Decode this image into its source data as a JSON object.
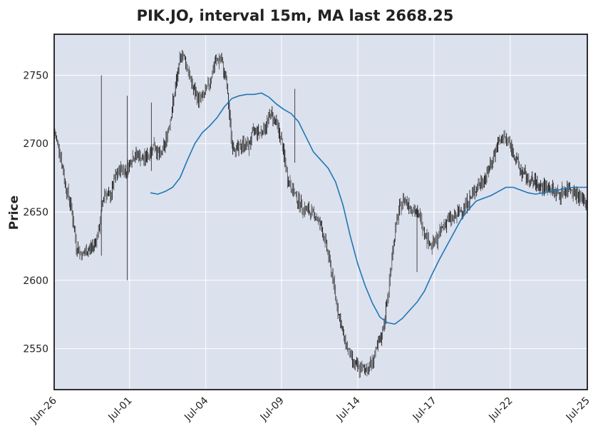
{
  "chart_data": {
    "type": "line",
    "title": "PIK.JO, interval 15m, MA last 2668.25",
    "xlabel": "",
    "ylabel": "Price",
    "ylim": [
      2520,
      2780
    ],
    "xlim": [
      "Jun-26",
      "Jul-25"
    ],
    "x_ticks": [
      "Jun-26",
      "Jul-01",
      "Jul-04",
      "Jul-09",
      "Jul-14",
      "Jul-17",
      "Jul-22",
      "Jul-25"
    ],
    "y_ticks": [
      2550,
      2600,
      2650,
      2700,
      2750
    ],
    "grid": true,
    "colors": {
      "price": "#222222",
      "ma": "#1f77b4",
      "plot_bg": "#dce1ee",
      "grid": "#ffffff"
    },
    "series": [
      {
        "style": "price-bars",
        "x": [
          0,
          0.3,
          0.6,
          0.9,
          1.2,
          1.5,
          1.8,
          2.1,
          2.4,
          2.7,
          3.0,
          3.3,
          3.6,
          3.9,
          4.2,
          4.5,
          4.8,
          5.1,
          5.4,
          5.7,
          6.0,
          6.3,
          6.6,
          6.9,
          7.2,
          7.5,
          7.8,
          8.1,
          8.4,
          8.7,
          9.0,
          9.3,
          9.6,
          9.9,
          10.2,
          10.5,
          10.8,
          11.1,
          11.4,
          11.7,
          12.0,
          12.3,
          12.6,
          12.9,
          13.2,
          13.5,
          13.8,
          14.1,
          14.4,
          14.7,
          15.0,
          15.3,
          15.6,
          15.9,
          16.2,
          16.5,
          16.8,
          17.1,
          17.4,
          17.7,
          18.0,
          18.3,
          18.6,
          18.9,
          19.2,
          19.5,
          19.8,
          20.1,
          20.4,
          20.7,
          21.0,
          21.3,
          21.6,
          21.9,
          22.2,
          22.5,
          22.8,
          23.1,
          23.4,
          23.7,
          24.0,
          24.3,
          24.6,
          24.9,
          25.2,
          25.5,
          25.8,
          26.1,
          26.4,
          26.7,
          27.0,
          27.3,
          27.6,
          27.9,
          28.2,
          28.5,
          28.8
        ],
        "values": [
          2708,
          2695,
          2670,
          2655,
          2625,
          2618,
          2622,
          2625,
          2635,
          2665,
          2660,
          2675,
          2682,
          2680,
          2690,
          2692,
          2688,
          2692,
          2700,
          2690,
          2700,
          2720,
          2745,
          2768,
          2755,
          2740,
          2732,
          2735,
          2745,
          2760,
          2762,
          2745,
          2700,
          2695,
          2700,
          2698,
          2710,
          2708,
          2712,
          2722,
          2715,
          2700,
          2675,
          2665,
          2658,
          2652,
          2650,
          2648,
          2640,
          2625,
          2605,
          2580,
          2560,
          2548,
          2538,
          2535,
          2535,
          2538,
          2548,
          2560,
          2585,
          2625,
          2650,
          2660,
          2655,
          2650,
          2645,
          2632,
          2625,
          2630,
          2640,
          2645,
          2645,
          2650,
          2655,
          2660,
          2668,
          2672,
          2678,
          2690,
          2700,
          2705,
          2700,
          2690,
          2680,
          2675,
          2672,
          2670,
          2668,
          2668,
          2665,
          2663,
          2666,
          2668,
          2663,
          2660,
          2655
        ]
      },
      {
        "style": "moving-average",
        "x": [
          5.2,
          5.6,
          6.0,
          6.4,
          6.8,
          7.2,
          7.6,
          8.0,
          8.4,
          8.8,
          9.2,
          9.6,
          10.0,
          10.4,
          10.8,
          11.2,
          11.6,
          12.0,
          12.4,
          12.8,
          13.2,
          13.6,
          14.0,
          14.4,
          14.8,
          15.2,
          15.6,
          16.0,
          16.4,
          16.8,
          17.2,
          17.6,
          18.0,
          18.4,
          18.8,
          19.2,
          19.6,
          20.0,
          20.4,
          20.8,
          21.2,
          21.6,
          22.0,
          22.4,
          22.8,
          23.2,
          23.6,
          24.0,
          24.4,
          24.8,
          25.2,
          25.6,
          26.0,
          26.4,
          26.8,
          27.2,
          27.6,
          28.0,
          28.4,
          28.8
        ],
        "values": [
          2664,
          2663,
          2665,
          2668,
          2675,
          2688,
          2700,
          2708,
          2713,
          2719,
          2727,
          2733,
          2735,
          2736,
          2736,
          2737,
          2734,
          2729,
          2725,
          2722,
          2716,
          2705,
          2694,
          2688,
          2682,
          2672,
          2655,
          2632,
          2612,
          2596,
          2583,
          2573,
          2569,
          2568,
          2572,
          2578,
          2584,
          2592,
          2604,
          2615,
          2625,
          2635,
          2645,
          2652,
          2658,
          2660,
          2662,
          2665,
          2668,
          2668,
          2666,
          2664,
          2663,
          2664,
          2665,
          2666,
          2667,
          2668,
          2668,
          2668
        ]
      }
    ]
  }
}
